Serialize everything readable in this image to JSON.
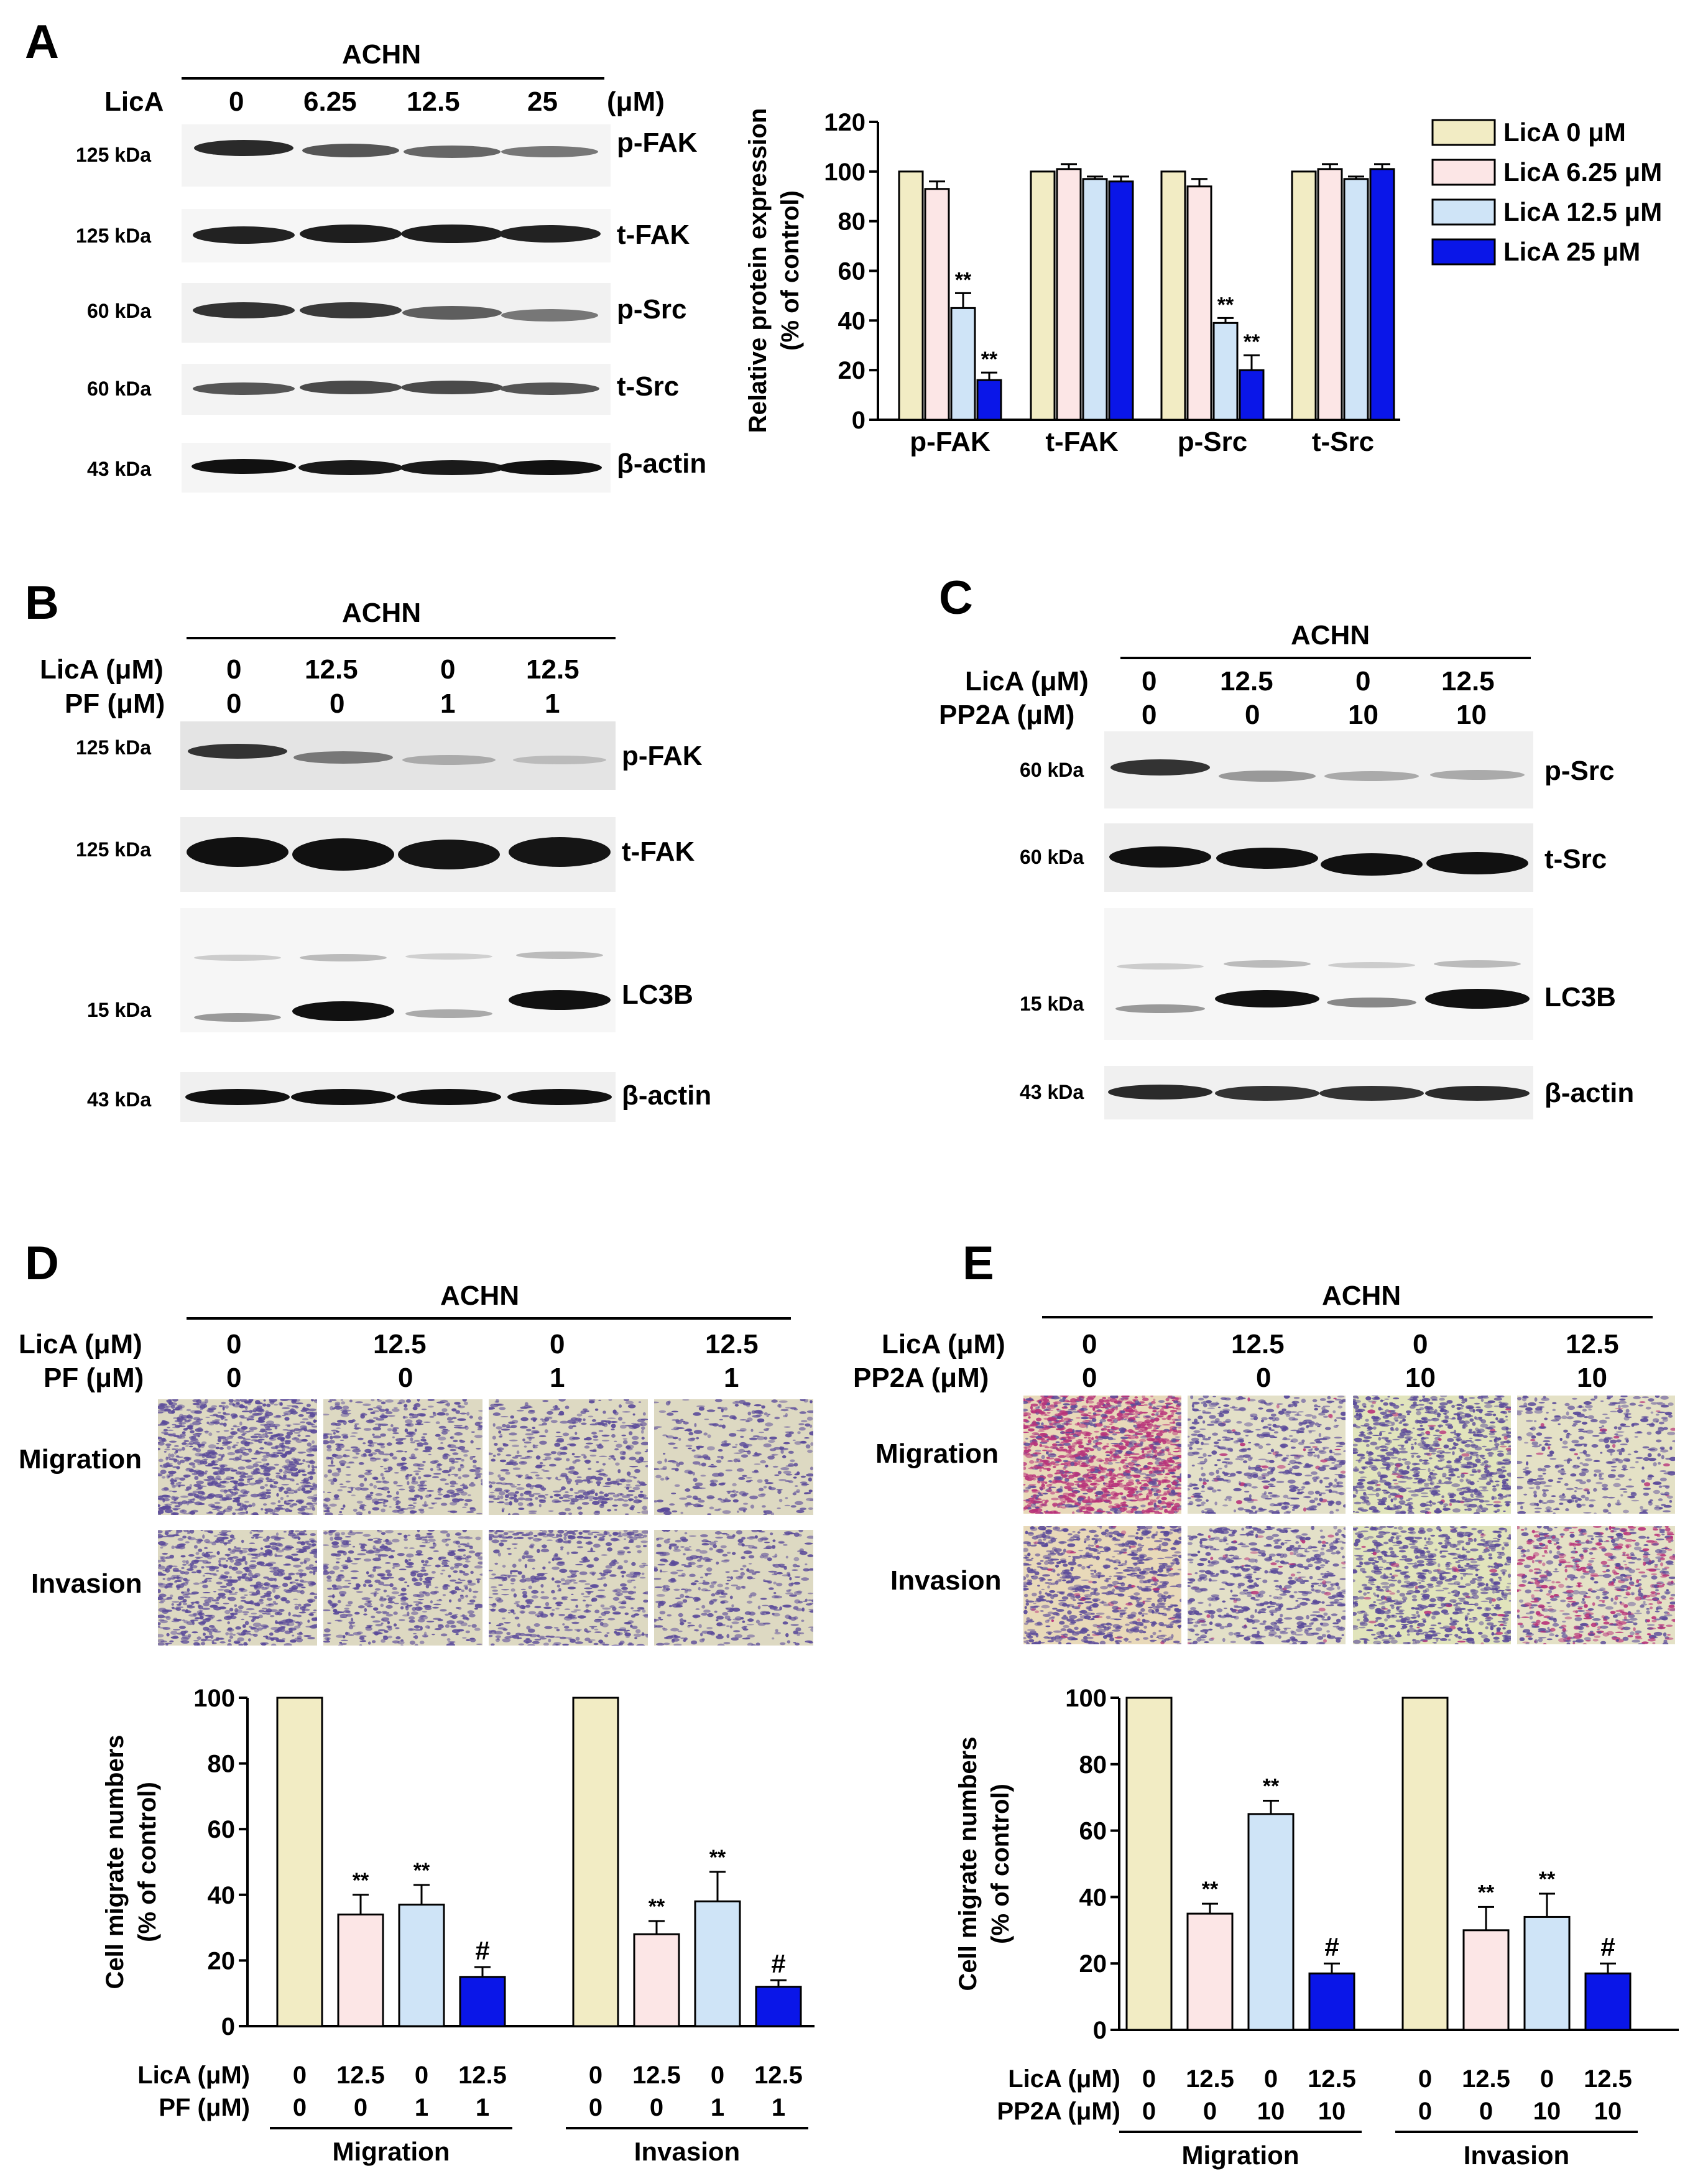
{
  "panels": [
    "A",
    "B",
    "C",
    "D",
    "E"
  ],
  "cell_line": "ACHN",
  "A": {
    "licA_label": "LicA",
    "unit": "(μM)",
    "doses": [
      "0",
      "6.25",
      "12.5",
      "25"
    ],
    "kda": [
      "125 kDa",
      "125 kDa",
      "60 kDa",
      "60 kDa",
      "43 kDa"
    ],
    "proteins": [
      "p-FAK",
      "t-FAK",
      "p-Src",
      "t-Src",
      "β-actin"
    ]
  },
  "B": {
    "row1_label": "LicA (μM)",
    "row2_label": "PF (μM)",
    "licA": [
      "0",
      "12.5",
      "0",
      "12.5"
    ],
    "pf": [
      "0",
      "0",
      "1",
      "1"
    ],
    "kda": [
      "125 kDa",
      "125 kDa",
      "15 kDa",
      "43 kDa"
    ],
    "proteins": [
      "p-FAK",
      "t-FAK",
      "LC3B",
      "β-actin"
    ]
  },
  "C": {
    "row1_label": "LicA (μM)",
    "row2_label": "PP2A (μM)",
    "licA": [
      "0",
      "12.5",
      "0",
      "12.5"
    ],
    "pp2a": [
      "0",
      "0",
      "10",
      "10"
    ],
    "kda": [
      "60 kDa",
      "60 kDa",
      "15 kDa",
      "43 kDa"
    ],
    "proteins": [
      "p-Src",
      "t-Src",
      "LC3B",
      "β-actin"
    ]
  },
  "D": {
    "row1_label": "LicA (μM)",
    "row2_label": "PF (μM)",
    "licA": [
      "0",
      "12.5",
      "0",
      "12.5"
    ],
    "pf": [
      "0",
      "0",
      "1",
      "1"
    ],
    "rows": [
      "Migration",
      "Invasion"
    ]
  },
  "E": {
    "row1_label": "LicA (μM)",
    "row2_label": "PP2A (μM)",
    "licA": [
      "0",
      "12.5",
      "0",
      "12.5"
    ],
    "pp2a": [
      "0",
      "0",
      "10",
      "10"
    ],
    "rows": [
      "Migration",
      "Invasion"
    ]
  },
  "colors": {
    "dose0": "#f2ecc4",
    "dose1": "#fce6e6",
    "dose2": "#cfe4f7",
    "dose3": "#0a16e8",
    "stain_purple": "#5a4a9a",
    "stain_magenta": "#b8327a",
    "membrane_bg": "#ddd9c2"
  },
  "chart_data": [
    {
      "panel": "A",
      "type": "bar",
      "ylabel": "Relative protein expression\n(% of control)",
      "ylim": [
        0,
        120
      ],
      "yticks": [
        0,
        20,
        40,
        60,
        80,
        100,
        120
      ],
      "categories": [
        "p-FAK",
        "t-FAK",
        "p-Src",
        "t-Src"
      ],
      "legend_position": "right",
      "series": [
        {
          "name": "LicA 0 μM",
          "values": [
            100,
            100,
            100,
            100
          ],
          "errors": [
            0,
            0,
            0,
            0
          ]
        },
        {
          "name": "LicA 6.25 μM",
          "values": [
            93,
            101,
            94,
            101
          ],
          "errors": [
            3,
            2,
            3,
            2
          ]
        },
        {
          "name": "LicA 12.5 μM",
          "values": [
            45,
            97,
            39,
            97
          ],
          "errors": [
            6,
            1,
            2,
            1
          ]
        },
        {
          "name": "LicA 25 μM",
          "values": [
            16,
            96,
            20,
            101
          ],
          "errors": [
            3,
            2,
            6,
            2
          ]
        }
      ],
      "annotations": [
        {
          "category": "p-FAK",
          "series": 2,
          "text": "**"
        },
        {
          "category": "p-FAK",
          "series": 3,
          "text": "**"
        },
        {
          "category": "p-Src",
          "series": 2,
          "text": "**"
        },
        {
          "category": "p-Src",
          "series": 3,
          "text": "**"
        }
      ]
    },
    {
      "panel": "D",
      "type": "bar",
      "ylabel": "Cell migrate numbers\n(% of control)",
      "ylim": [
        0,
        100
      ],
      "yticks": [
        0,
        20,
        40,
        60,
        80,
        100
      ],
      "groups": [
        {
          "name": "Migration",
          "values": [
            100,
            34,
            37,
            15
          ],
          "errors": [
            0,
            6,
            6,
            3
          ],
          "marks": [
            "",
            "**",
            "**",
            "#"
          ]
        },
        {
          "name": "Invasion",
          "values": [
            100,
            28,
            38,
            12
          ],
          "errors": [
            0,
            4,
            9,
            2
          ],
          "marks": [
            "",
            "**",
            "**",
            "#"
          ]
        }
      ],
      "x_row1_label": "LicA (μM)",
      "x_row2_label": "PF (μM)",
      "x_row1": [
        "0",
        "12.5",
        "0",
        "12.5"
      ],
      "x_row2": [
        "0",
        "0",
        "1",
        "1"
      ]
    },
    {
      "panel": "E",
      "type": "bar",
      "ylabel": "Cell migrate numbers\n(% of control)",
      "ylim": [
        0,
        100
      ],
      "yticks": [
        0,
        20,
        40,
        60,
        80,
        100
      ],
      "groups": [
        {
          "name": "Migration",
          "values": [
            100,
            35,
            65,
            17
          ],
          "errors": [
            0,
            3,
            4,
            3
          ],
          "marks": [
            "",
            "**",
            "**",
            "#"
          ]
        },
        {
          "name": "Invasion",
          "values": [
            100,
            30,
            34,
            17
          ],
          "errors": [
            0,
            7,
            7,
            3
          ],
          "marks": [
            "",
            "**",
            "**",
            "#"
          ]
        }
      ],
      "x_row1_label": "LicA (μM)",
      "x_row2_label": "PP2A (μM)",
      "x_row1": [
        "0",
        "12.5",
        "0",
        "12.5"
      ],
      "x_row2": [
        "0",
        "0",
        "10",
        "10"
      ]
    }
  ]
}
